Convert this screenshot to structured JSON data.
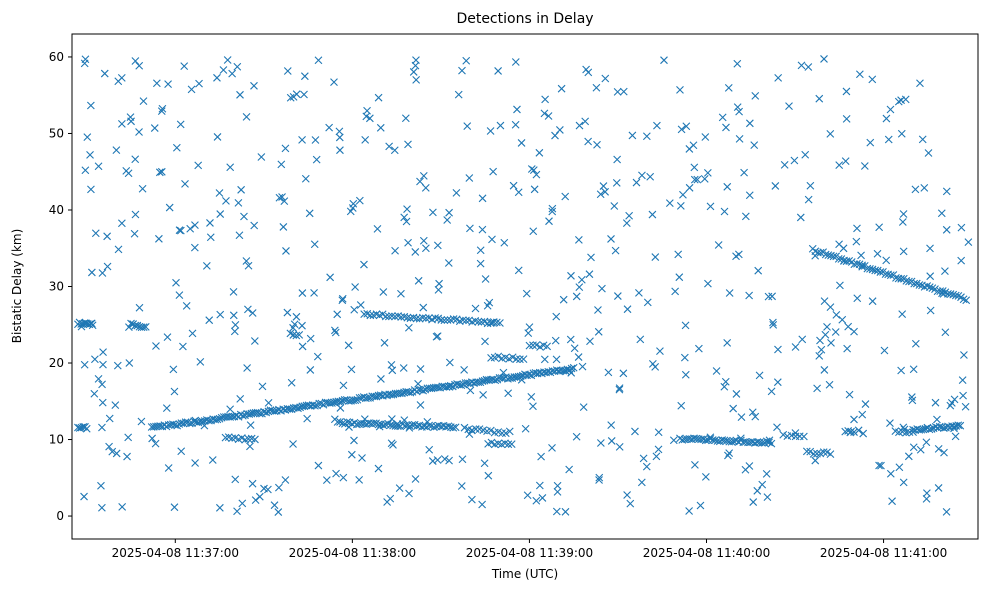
{
  "chart_data": {
    "type": "scatter",
    "title": "Detections in Delay",
    "xlabel": "Time (UTC)",
    "ylabel": "Bistatic Delay (km)",
    "x_unit": "seconds past 11:36:00 UTC, 2025-04-08",
    "xlim": [
      25,
      332
    ],
    "ylim": [
      -3,
      63
    ],
    "x_ticks": [
      60,
      120,
      180,
      240,
      300
    ],
    "x_tick_labels": [
      "2025-04-08 11:37:00",
      "2025-04-08 11:38:00",
      "2025-04-08 11:39:00",
      "2025-04-08 11:40:00",
      "2025-04-08 11:41:00"
    ],
    "y_ticks": [
      0,
      10,
      20,
      30,
      40,
      50,
      60
    ],
    "y_tick_labels": [
      "0",
      "10",
      "20",
      "30",
      "40",
      "50",
      "60"
    ],
    "grid": false,
    "marker": "x",
    "color": "#1f77b4",
    "series": [
      {
        "name": "",
        "segments": [
          {
            "x_start": 27,
            "x_end": 32,
            "y_start": 25.2,
            "y_end": 25.0,
            "count": 10
          },
          {
            "x_start": 45,
            "x_end": 50,
            "y_start": 25.2,
            "y_end": 24.6,
            "count": 8
          },
          {
            "x_start": 27,
            "x_end": 30,
            "y_start": 11.6,
            "y_end": 11.5,
            "count": 6
          },
          {
            "x_start": 52,
            "x_end": 195,
            "y_start": 11.5,
            "y_end": 19.3,
            "count": 200
          },
          {
            "x_start": 77,
            "x_end": 87,
            "y_start": 10.3,
            "y_end": 10.0,
            "count": 10
          },
          {
            "x_start": 99,
            "x_end": 102,
            "y_start": 23.8,
            "y_end": 23.6,
            "count": 4
          },
          {
            "x_start": 115,
            "x_end": 155,
            "y_start": 12.2,
            "y_end": 11.6,
            "count": 50
          },
          {
            "x_start": 124,
            "x_end": 170,
            "y_start": 26.4,
            "y_end": 25.2,
            "count": 45
          },
          {
            "x_start": 167,
            "x_end": 178,
            "y_start": 20.8,
            "y_end": 20.5,
            "count": 10
          },
          {
            "x_start": 158,
            "x_end": 172,
            "y_start": 11.5,
            "y_end": 10.8,
            "count": 12
          },
          {
            "x_start": 166,
            "x_end": 174,
            "y_start": 9.5,
            "y_end": 9.4,
            "count": 8
          },
          {
            "x_start": 180,
            "x_end": 186,
            "y_start": 22.3,
            "y_end": 22.2,
            "count": 6
          },
          {
            "x_start": 194,
            "x_end": 198,
            "y_start": 23.1,
            "y_end": 19.5,
            "count": 4
          },
          {
            "x_start": 231,
            "x_end": 262,
            "y_start": 10.1,
            "y_end": 9.6,
            "count": 40
          },
          {
            "x_start": 266,
            "x_end": 273,
            "y_start": 10.6,
            "y_end": 10.4,
            "count": 6
          },
          {
            "x_start": 274,
            "x_end": 282,
            "y_start": 8.3,
            "y_end": 8.2,
            "count": 8
          },
          {
            "x_start": 276,
            "x_end": 328,
            "y_start": 34.8,
            "y_end": 28.3,
            "count": 60
          },
          {
            "x_start": 287,
            "x_end": 290,
            "y_start": 11.0,
            "y_end": 11.0,
            "count": 4
          },
          {
            "x_start": 304,
            "x_end": 310,
            "y_start": 11.0,
            "y_end": 11.0,
            "count": 6
          },
          {
            "x_start": 310,
            "x_end": 326,
            "y_start": 11.3,
            "y_end": 11.8,
            "count": 24
          },
          {
            "x_start": 280,
            "x_end": 290,
            "y_start": 28.0,
            "y_end": 24.0,
            "count": 6
          }
        ],
        "scatter": {
          "x_range": [
            27,
            329
          ],
          "y_range": [
            0.5,
            59.8
          ],
          "count": 650,
          "seed": 7
        }
      }
    ]
  }
}
